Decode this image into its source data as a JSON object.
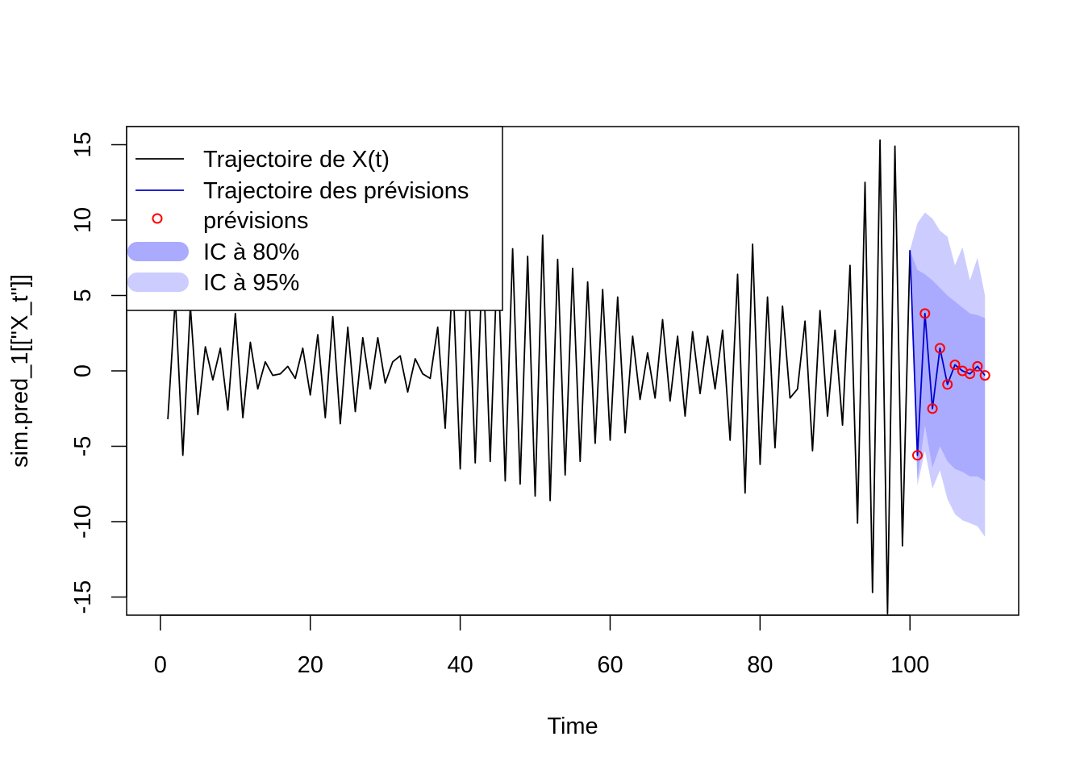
{
  "chart_data": {
    "type": "line",
    "title": "",
    "xlabel": "Time",
    "ylabel": "sim.pred_1[[\"X_t\"]]",
    "xlim": [
      -4.5,
      114.5
    ],
    "ylim": [
      -16.2,
      16.2
    ],
    "x_ticks": [
      0,
      20,
      40,
      60,
      80,
      100
    ],
    "y_ticks": [
      -15,
      -10,
      -5,
      0,
      5,
      10,
      15
    ],
    "legend_position": "top-left",
    "legend": [
      {
        "label": "Trajectoire de X(t)",
        "kind": "line",
        "color": "#000000"
      },
      {
        "label": "Trajectoire des prévisions",
        "kind": "line",
        "color": "#0000cd"
      },
      {
        "label": "prévisions",
        "kind": "point",
        "color": "#ff0000"
      },
      {
        "label": "IC à 80%",
        "kind": "band",
        "color": "#aaaaff"
      },
      {
        "label": "IC à 95%",
        "kind": "band",
        "color": "#ccccff"
      }
    ],
    "series": [
      {
        "name": "Trajectoire de X(t)",
        "color": "#000000",
        "x": [
          1,
          2,
          3,
          4,
          5,
          6,
          7,
          8,
          9,
          10,
          11,
          12,
          13,
          14,
          15,
          16,
          17,
          18,
          19,
          20,
          21,
          22,
          23,
          24,
          25,
          26,
          27,
          28,
          29,
          30,
          31,
          32,
          33,
          34,
          35,
          36,
          37,
          38,
          39,
          40,
          41,
          42,
          43,
          44,
          45,
          46,
          47,
          48,
          49,
          50,
          51,
          52,
          53,
          54,
          55,
          56,
          57,
          58,
          59,
          60,
          61,
          62,
          63,
          64,
          65,
          66,
          67,
          68,
          69,
          70,
          71,
          72,
          73,
          74,
          75,
          76,
          77,
          78,
          79,
          80,
          81,
          82,
          83,
          84,
          85,
          86,
          87,
          88,
          89,
          90,
          91,
          92,
          93,
          94,
          95,
          96,
          97,
          98,
          99,
          100
        ],
        "y": [
          -3.2,
          4.8,
          -5.6,
          4.3,
          -2.9,
          1.6,
          -0.6,
          1.5,
          -2.6,
          3.8,
          -3.1,
          1.9,
          -1.2,
          0.6,
          -0.3,
          -0.2,
          0.3,
          -0.5,
          1.5,
          -1.6,
          2.4,
          -3.1,
          3.6,
          -3.5,
          2.9,
          -2.7,
          2.2,
          -1.2,
          2.2,
          -0.8,
          0.6,
          1.0,
          -1.4,
          0.8,
          -0.2,
          -0.5,
          2.9,
          -3.8,
          6.5,
          -6.5,
          7.5,
          -6.1,
          8.0,
          -6.0,
          8.2,
          -7.3,
          8.1,
          -7.5,
          7.6,
          -8.3,
          9.0,
          -8.6,
          7.4,
          -6.9,
          6.8,
          -6.0,
          5.9,
          -4.8,
          5.4,
          -4.6,
          4.9,
          -4.1,
          2.3,
          -1.9,
          1.2,
          -1.8,
          3.4,
          -2.0,
          2.3,
          -3.0,
          2.6,
          -1.5,
          2.3,
          -1.2,
          2.7,
          -4.6,
          6.4,
          -8.1,
          8.4,
          -6.2,
          4.9,
          -5.1,
          4.3,
          -1.8,
          -1.2,
          3.3,
          -5.3,
          4.0,
          -3.0,
          2.7,
          -3.6,
          7.0,
          -10.1,
          12.5,
          -14.7,
          15.3,
          -16.1,
          14.9,
          -11.6,
          8.0
        ]
      },
      {
        "name": "Trajectoire des prévisions",
        "color": "#0000cd",
        "x": [
          100,
          101,
          102,
          103,
          104,
          105,
          106,
          107,
          108,
          109,
          110
        ],
        "y": [
          8.0,
          -5.6,
          3.8,
          -2.5,
          1.5,
          -0.9,
          0.4,
          0.0,
          -0.2,
          0.3,
          -0.3
        ]
      },
      {
        "name": "prévisions",
        "color": "#ff0000",
        "x": [
          101,
          102,
          103,
          104,
          105,
          106,
          107,
          108,
          109,
          110
        ],
        "y": [
          -5.6,
          3.8,
          -2.5,
          1.5,
          -0.9,
          0.4,
          0.0,
          -0.2,
          0.3,
          -0.3
        ]
      }
    ],
    "bands": [
      {
        "name": "IC à 95%",
        "color": "#ccccff",
        "x": [
          100,
          101,
          102,
          103,
          104,
          105,
          106,
          107,
          108,
          109,
          110
        ],
        "lower": [
          8.0,
          -7.6,
          -5.3,
          -7.8,
          -6.6,
          -8.5,
          -9.5,
          -9.9,
          -10.1,
          -10.3,
          -11.0
        ],
        "upper": [
          8.0,
          9.8,
          10.5,
          10.1,
          9.3,
          8.9,
          7.0,
          8.2,
          6.0,
          7.5,
          5.0
        ]
      },
      {
        "name": "IC à 80%",
        "color": "#aaaaff",
        "x": [
          100,
          101,
          102,
          103,
          104,
          105,
          106,
          107,
          108,
          109,
          110
        ],
        "lower": [
          8.0,
          -7.2,
          -3.6,
          -6.4,
          -5.0,
          -6.0,
          -6.5,
          -6.7,
          -7.0,
          -7.0,
          -7.3
        ],
        "upper": [
          8.0,
          6.7,
          6.4,
          6.0,
          5.5,
          5.0,
          4.6,
          4.2,
          3.8,
          3.7,
          3.5
        ]
      }
    ]
  }
}
